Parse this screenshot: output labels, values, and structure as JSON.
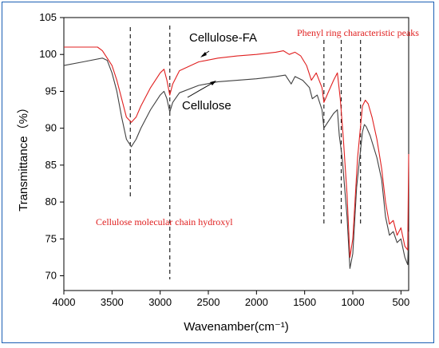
{
  "chart_data": {
    "type": "line",
    "xlabel": "Wavenamber(cm⁻¹)",
    "ylabel": "Transmittance（%）",
    "xlim": [
      4000,
      420
    ],
    "ylim": [
      68,
      105
    ],
    "x_ticks": [
      4000,
      3500,
      3000,
      2500,
      2000,
      1500,
      1000,
      500
    ],
    "y_ticks": [
      70,
      75,
      80,
      85,
      90,
      95,
      100,
      105
    ],
    "series": [
      {
        "name": "Cellulose",
        "color": "#404040",
        "points": [
          [
            4000,
            98.5
          ],
          [
            3800,
            99.0
          ],
          [
            3600,
            99.5
          ],
          [
            3550,
            99.2
          ],
          [
            3500,
            97.5
          ],
          [
            3450,
            95.0
          ],
          [
            3400,
            91.5
          ],
          [
            3350,
            88.5
          ],
          [
            3300,
            87.5
          ],
          [
            3250,
            88.5
          ],
          [
            3200,
            90.0
          ],
          [
            3100,
            92.5
          ],
          [
            3000,
            94.5
          ],
          [
            2960,
            95.0
          ],
          [
            2930,
            94.0
          ],
          [
            2900,
            92.2
          ],
          [
            2870,
            93.5
          ],
          [
            2800,
            94.8
          ],
          [
            2600,
            95.8
          ],
          [
            2400,
            96.3
          ],
          [
            2200,
            96.5
          ],
          [
            2000,
            96.7
          ],
          [
            1800,
            97.0
          ],
          [
            1700,
            97.2
          ],
          [
            1640,
            96.0
          ],
          [
            1600,
            97.0
          ],
          [
            1520,
            96.5
          ],
          [
            1450,
            95.5
          ],
          [
            1420,
            94.0
          ],
          [
            1370,
            94.5
          ],
          [
            1320,
            92.5
          ],
          [
            1300,
            90.0
          ],
          [
            1250,
            91.0
          ],
          [
            1200,
            92.0
          ],
          [
            1160,
            92.5
          ],
          [
            1140,
            89.0
          ],
          [
            1110,
            86.0
          ],
          [
            1060,
            78.0
          ],
          [
            1030,
            71.0
          ],
          [
            1000,
            73.0
          ],
          [
            960,
            82.0
          ],
          [
            900,
            89.5
          ],
          [
            880,
            90.5
          ],
          [
            860,
            90.2
          ],
          [
            820,
            89.0
          ],
          [
            750,
            86.0
          ],
          [
            700,
            83.0
          ],
          [
            660,
            78.0
          ],
          [
            620,
            75.5
          ],
          [
            580,
            76.0
          ],
          [
            540,
            74.5
          ],
          [
            500,
            75.0
          ],
          [
            460,
            72.5
          ],
          [
            430,
            71.5
          ],
          [
            420,
            76.0
          ]
        ]
      },
      {
        "name": "Cellulose-FA",
        "color": "#e02020",
        "points": [
          [
            4000,
            101.0
          ],
          [
            3800,
            101.0
          ],
          [
            3650,
            101.0
          ],
          [
            3600,
            100.5
          ],
          [
            3500,
            98.5
          ],
          [
            3450,
            96.5
          ],
          [
            3400,
            94.0
          ],
          [
            3350,
            91.5
          ],
          [
            3300,
            90.8
          ],
          [
            3250,
            91.5
          ],
          [
            3200,
            93.0
          ],
          [
            3100,
            95.5
          ],
          [
            3000,
            97.5
          ],
          [
            2960,
            98.0
          ],
          [
            2930,
            96.5
          ],
          [
            2900,
            94.5
          ],
          [
            2870,
            96.0
          ],
          [
            2800,
            97.8
          ],
          [
            2600,
            99.0
          ],
          [
            2400,
            99.5
          ],
          [
            2200,
            99.8
          ],
          [
            2000,
            100.0
          ],
          [
            1800,
            100.3
          ],
          [
            1720,
            100.5
          ],
          [
            1660,
            100.0
          ],
          [
            1600,
            100.3
          ],
          [
            1540,
            99.8
          ],
          [
            1480,
            98.5
          ],
          [
            1430,
            96.5
          ],
          [
            1380,
            97.5
          ],
          [
            1320,
            95.5
          ],
          [
            1300,
            93.5
          ],
          [
            1250,
            95.0
          ],
          [
            1200,
            96.5
          ],
          [
            1160,
            97.5
          ],
          [
            1130,
            94.0
          ],
          [
            1100,
            89.0
          ],
          [
            1060,
            81.0
          ],
          [
            1030,
            72.5
          ],
          [
            1000,
            75.0
          ],
          [
            950,
            86.0
          ],
          [
            900,
            93.0
          ],
          [
            870,
            93.8
          ],
          [
            840,
            93.3
          ],
          [
            800,
            91.5
          ],
          [
            750,
            88.5
          ],
          [
            700,
            84.5
          ],
          [
            660,
            80.0
          ],
          [
            620,
            77.0
          ],
          [
            580,
            77.5
          ],
          [
            540,
            75.5
          ],
          [
            500,
            76.5
          ],
          [
            460,
            74.0
          ],
          [
            430,
            73.5
          ],
          [
            420,
            86.5
          ]
        ]
      }
    ],
    "reference_lines_x": [
      3310,
      2900,
      1300,
      1120,
      920
    ],
    "annotations": {
      "cellulose_fa": "Cellulose-FA",
      "cellulose": "Cellulose",
      "phenyl": "Phenyl ring characteristic peaks",
      "hydroxyl": "Cellulose molecular chain hydroxyl"
    }
  }
}
